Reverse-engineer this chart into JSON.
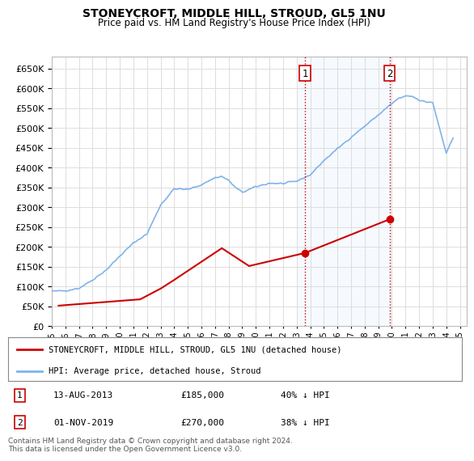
{
  "title": "STONEYCROFT, MIDDLE HILL, STROUD, GL5 1NU",
  "subtitle": "Price paid vs. HM Land Registry's House Price Index (HPI)",
  "ytick_values": [
    0,
    50000,
    100000,
    150000,
    200000,
    250000,
    300000,
    350000,
    400000,
    450000,
    500000,
    550000,
    600000,
    650000
  ],
  "ylim": [
    0,
    680000
  ],
  "xlim_start": 1995.0,
  "xlim_end": 2025.5,
  "hpi_color": "#7fb3e8",
  "price_color": "#cc0000",
  "shaded_region_color": "#ddeeff",
  "purchase1_x": 2013.617,
  "purchase1_y": 185000,
  "purchase2_x": 2019.833,
  "purchase2_y": 270000,
  "legend_property_label": "STONEYCROFT, MIDDLE HILL, STROUD, GL5 1NU (detached house)",
  "legend_hpi_label": "HPI: Average price, detached house, Stroud",
  "table_rows": [
    {
      "num": "1",
      "date": "13-AUG-2013",
      "price": "£185,000",
      "pct": "40% ↓ HPI"
    },
    {
      "num": "2",
      "date": "01-NOV-2019",
      "price": "£270,000",
      "pct": "38% ↓ HPI"
    }
  ],
  "footnote": "Contains HM Land Registry data © Crown copyright and database right 2024.\nThis data is licensed under the Open Government Licence v3.0.",
  "background_color": "#ffffff",
  "plot_bg_color": "#ffffff",
  "grid_color": "#dddddd",
  "price_data_x": [
    1995.5,
    2001.5,
    2003.0,
    2004.0,
    2007.5,
    2009.5,
    2013.617,
    2019.833
  ],
  "price_data_y": [
    52000,
    68000,
    95000,
    117000,
    197000,
    152000,
    185000,
    270000
  ],
  "shaded_x1": 2013.0,
  "shaded_x2": 2020.0,
  "vline1_x": 2013.617,
  "vline2_x": 2019.833
}
